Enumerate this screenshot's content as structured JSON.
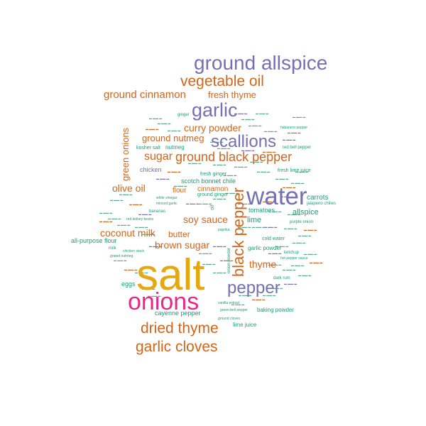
{
  "colors": {
    "orange": "#d1651b",
    "purple": "#7570b3",
    "gold": "#e6a80e",
    "magenta": "#e7298a",
    "green": "#1b9e77",
    "background": "#ffffff"
  },
  "words": [
    {
      "text": "salt"
    },
    {
      "text": "onions"
    },
    {
      "text": "water"
    },
    {
      "text": "ground allspice"
    },
    {
      "text": "garlic"
    },
    {
      "text": "vegetable oil"
    },
    {
      "text": "black pepper"
    },
    {
      "text": "pepper"
    },
    {
      "text": "dried thyme"
    },
    {
      "text": "garlic cloves"
    },
    {
      "text": "scallions"
    },
    {
      "text": "ground black pepper"
    },
    {
      "text": "ground cinnamon"
    },
    {
      "text": "fresh thyme"
    },
    {
      "text": "curry powder"
    },
    {
      "text": "ground nutmeg"
    },
    {
      "text": "sugar"
    },
    {
      "text": "green onions"
    },
    {
      "text": "olive oil"
    },
    {
      "text": "soy sauce"
    },
    {
      "text": "coconut milk"
    },
    {
      "text": "brown sugar"
    },
    {
      "text": "butter"
    },
    {
      "text": "thyme"
    },
    {
      "text": "allspice"
    },
    {
      "text": "carrots"
    },
    {
      "text": "cinnamon"
    },
    {
      "text": "flour"
    },
    {
      "text": "lime"
    },
    {
      "text": "tomatoes"
    },
    {
      "text": "chicken"
    },
    {
      "text": "nutmeg"
    },
    {
      "text": "kosher salt"
    },
    {
      "text": "scotch bonnet chile"
    },
    {
      "text": "ground ginger"
    },
    {
      "text": "fresh ginger"
    },
    {
      "text": "fresh lime juice"
    },
    {
      "text": "cold water"
    },
    {
      "text": "garlic powder"
    },
    {
      "text": "all-purpose flour"
    },
    {
      "text": "cayenne pepper"
    },
    {
      "text": "baking powder"
    },
    {
      "text": "lime juice"
    },
    {
      "text": "eggs"
    },
    {
      "text": "milk"
    },
    {
      "text": "red bell pepper"
    },
    {
      "text": "jalapeno chilies"
    },
    {
      "text": "purple onion"
    },
    {
      "text": "ginger"
    },
    {
      "text": "oil"
    },
    {
      "text": "green bell pepper"
    },
    {
      "text": "ground cloves"
    },
    {
      "text": "vanilla extract"
    },
    {
      "text": "dark rum"
    },
    {
      "text": "ketchup"
    },
    {
      "text": "paprika"
    },
    {
      "text": "onion powder"
    },
    {
      "text": "bananas"
    },
    {
      "text": "white vinegar"
    },
    {
      "text": "habanero pepper"
    },
    {
      "text": "hot pepper sauce"
    },
    {
      "text": "grated nutmeg"
    },
    {
      "text": "chicken stock"
    },
    {
      "text": "minced garlic"
    },
    {
      "text": "red kidney beans"
    }
  ]
}
